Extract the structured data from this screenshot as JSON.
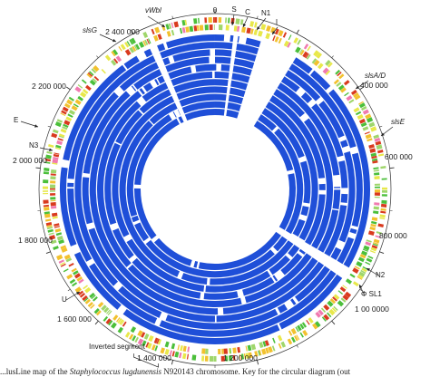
{
  "figure": {
    "position_labels": [
      {
        "id": "p0",
        "text": "0"
      },
      {
        "id": "p2400000",
        "text": "2 400 000"
      },
      {
        "id": "p2200000",
        "text": "2 200 000"
      },
      {
        "id": "p2000000",
        "text": "2 000 000"
      },
      {
        "id": "p1800000",
        "text": "1 800 000"
      },
      {
        "id": "p1600000",
        "text": "1 600 000"
      },
      {
        "id": "p1400000",
        "text": "1 400 000"
      },
      {
        "id": "p1200000",
        "text": "1 200 000"
      },
      {
        "id": "p1000000",
        "text": "1 00 0000"
      },
      {
        "id": "p800000",
        "text": "800 000"
      },
      {
        "id": "p600000",
        "text": "600 000"
      },
      {
        "id": "p400000",
        "text": "400 000"
      }
    ],
    "feature_labels": [
      {
        "id": "vwbl",
        "text": "vWbl",
        "italic": true
      },
      {
        "id": "s",
        "text": "S",
        "italic": false
      },
      {
        "id": "c",
        "text": "C",
        "italic": false
      },
      {
        "id": "n1",
        "text": "N1",
        "italic": false
      },
      {
        "id": "i",
        "text": "I",
        "italic": false
      },
      {
        "id": "slsg",
        "text": "slsG",
        "italic": true
      },
      {
        "id": "slsad",
        "text": "slsA/D",
        "italic": true
      },
      {
        "id": "slse",
        "text": "slsE",
        "italic": true
      },
      {
        "id": "e",
        "text": "E",
        "italic": false
      },
      {
        "id": "n3",
        "text": "N3",
        "italic": false
      },
      {
        "id": "n2",
        "text": "N2",
        "italic": false
      },
      {
        "id": "phisl1",
        "text": "Φ SL1",
        "italic": false
      },
      {
        "id": "u",
        "text": "U",
        "italic": false
      },
      {
        "id": "inverted",
        "text": "Inverted segment",
        "italic": false
      }
    ],
    "colors": {
      "blast_ring": "#1f4fd8",
      "gc_high": "#d93a1e",
      "gc_mid": "#f2c12e",
      "gc_low": "#4bbf3a",
      "pink": "#f07ab0",
      "axis": "#333333"
    },
    "caption": {
      "prefix": "...lusLine map of the",
      "species": "Staphylococcus lugdunensis",
      "suffix": "N920143 chromosome. Key for the circular diagram (out"
    }
  }
}
